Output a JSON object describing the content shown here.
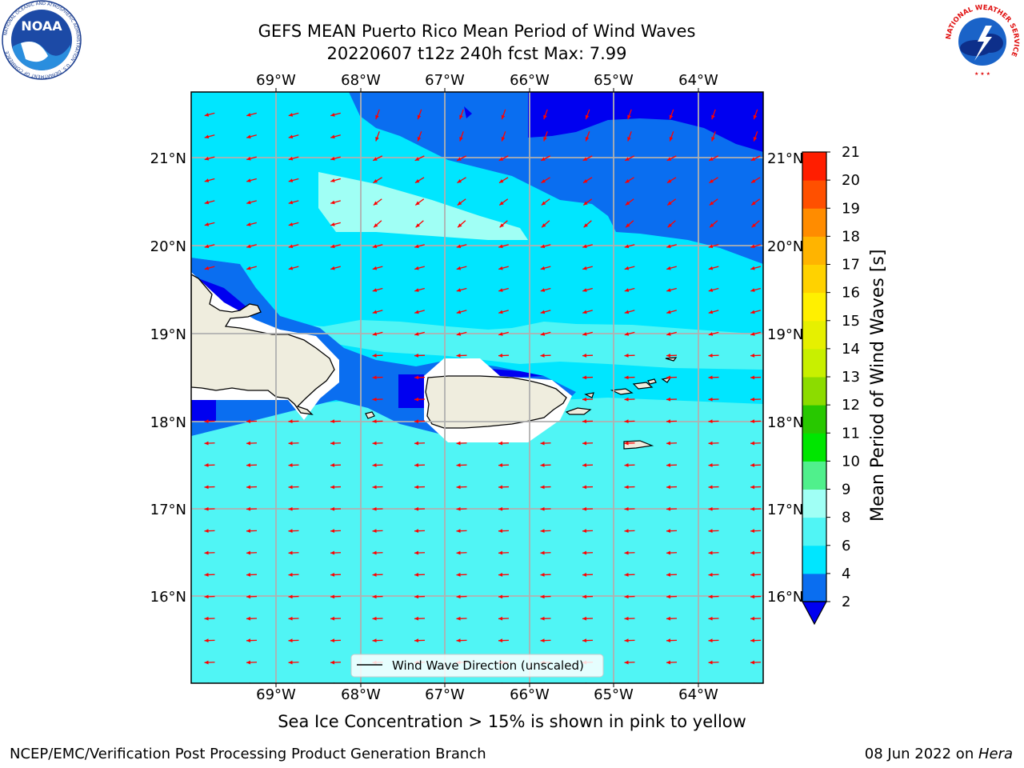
{
  "title": {
    "line1": "GEFS MEAN Puerto Rico Mean Period of Wind Waves",
    "line2": "20220607 t12z 240h fcst   Max: 7.99"
  },
  "map": {
    "lon_labels": [
      "69°W",
      "68°W",
      "67°W",
      "66°W",
      "65°W",
      "64°W"
    ],
    "lat_labels": [
      "21°N",
      "20°N",
      "19°N",
      "18°N",
      "17°N",
      "16°N"
    ],
    "legend_label": "Wind Wave Direction (unscaled)",
    "colors": {
      "land": "#efedde",
      "arrow": "#ff0000",
      "grid": "#b0b0b0"
    }
  },
  "colorbar": {
    "title": "Mean Period of Wind Waves [s]",
    "labels": [
      "2",
      "4",
      "6",
      "8",
      "9",
      "10",
      "11",
      "12",
      "13",
      "14",
      "15",
      "16",
      "17",
      "18",
      "19",
      "20",
      "21"
    ],
    "colors": [
      "#0a6ef0",
      "#00e6ff",
      "#50f5f5",
      "#a0fff5",
      "#50f08c",
      "#00e600",
      "#28c800",
      "#8cdc00",
      "#c8f000",
      "#e6f000",
      "#fff000",
      "#ffd200",
      "#ffb400",
      "#ff8c00",
      "#ff5000",
      "#ff1e00",
      "#ff0000"
    ],
    "under_color": "#0000f0"
  },
  "notes": {
    "sea_ice": "Sea Ice Concentration > 15% is shown in pink to yellow"
  },
  "footer": {
    "left": "NCEP/EMC/Verification Post Processing Product Generation Branch",
    "date": "08 Jun 2022 on ",
    "machine": "Hera"
  },
  "logos": {
    "noaa": "NOAA",
    "noaa_ring": "NATIONAL OCEANIC AND ATMOSPHERIC ADMINISTRATION · U.S. DEPARTMENT OF COMMERCE",
    "nws_ring": "NATIONAL WEATHER SERVICE"
  }
}
